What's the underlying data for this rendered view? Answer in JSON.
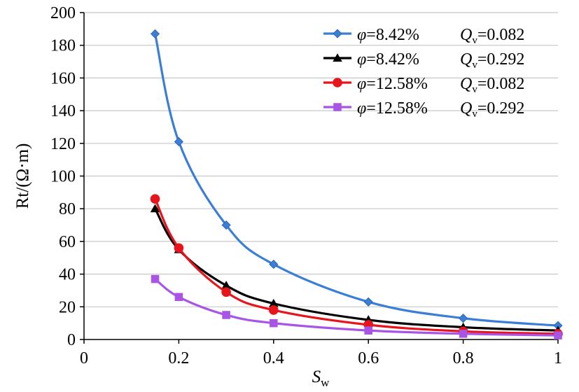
{
  "chart_data": {
    "type": "line",
    "title": "",
    "xlabel": {
      "main": "S",
      "sub": "w"
    },
    "ylabel": "Rt/(Ω·m)",
    "xlim": [
      0,
      1
    ],
    "ylim": [
      0,
      200
    ],
    "xticks": [
      0,
      0.2,
      0.4,
      0.6,
      0.8,
      1
    ],
    "xtick_labels": [
      "0",
      "0.2",
      "0.4",
      "0.6",
      "0.8",
      "1"
    ],
    "yticks": [
      0,
      20,
      40,
      60,
      80,
      100,
      120,
      140,
      160,
      180,
      200
    ],
    "ytick_labels": [
      "0",
      "20",
      "40",
      "60",
      "80",
      "100",
      "120",
      "140",
      "160",
      "180",
      "200"
    ],
    "grid": "horizontal",
    "legend_position": "top-right",
    "x": [
      0.15,
      0.2,
      0.3,
      0.4,
      0.6,
      0.8,
      1
    ],
    "series": [
      {
        "name": {
          "phi": "φ",
          "phi_value": "=8.42%",
          "q": "Q",
          "q_sub": "v",
          "q_value": "=0.082"
        },
        "values": [
          187,
          121,
          70,
          46,
          23,
          13,
          8.5
        ],
        "color": "#3a7fd5",
        "marker": "diamond"
      },
      {
        "name": {
          "phi": "φ",
          "phi_value": "=8.42%",
          "q": "Q",
          "q_sub": "v",
          "q_value": "=0.292"
        },
        "values": [
          80,
          55,
          33,
          22,
          12,
          7.5,
          5.5
        ],
        "color": "#000000",
        "marker": "triangle"
      },
      {
        "name": {
          "phi": "φ",
          "phi_value": "=12.58%",
          "q": "Q",
          "q_sub": "v",
          "q_value": "=0.082"
        },
        "values": [
          86,
          56,
          29,
          18,
          9,
          5,
          3.5
        ],
        "color": "#e8141c",
        "marker": "circle"
      },
      {
        "name": {
          "phi": "φ",
          "phi_value": "=12.58%",
          "q": "Q",
          "q_sub": "v",
          "q_value": "=0.292"
        },
        "values": [
          37,
          26,
          15,
          10,
          5.5,
          3.5,
          2.5
        ],
        "color": "#a855e6",
        "marker": "square"
      }
    ]
  }
}
